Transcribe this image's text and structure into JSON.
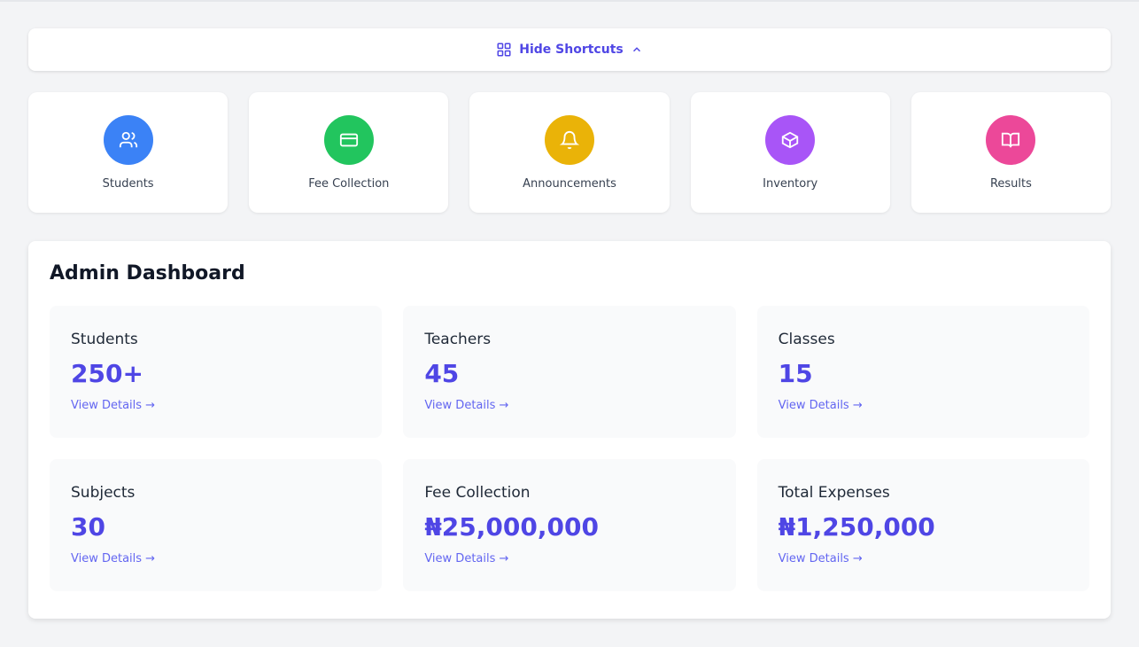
{
  "toggle": {
    "label": "Hide Shortcuts",
    "icon": "grid-icon",
    "chevron": "chevron-up-icon"
  },
  "shortcuts": [
    {
      "label": "Students",
      "icon": "users-icon",
      "color": "#3b82f6"
    },
    {
      "label": "Fee Collection",
      "icon": "credit-card-icon",
      "color": "#22c55e"
    },
    {
      "label": "Announcements",
      "icon": "bell-icon",
      "color": "#eab308"
    },
    {
      "label": "Inventory",
      "icon": "box-icon",
      "color": "#a855f7"
    },
    {
      "label": "Results",
      "icon": "book-open-icon",
      "color": "#ec4899"
    }
  ],
  "dashboard": {
    "title": "Admin Dashboard",
    "link_label": "View Details →",
    "cards": [
      {
        "title": "Students",
        "value": "250+"
      },
      {
        "title": "Teachers",
        "value": "45"
      },
      {
        "title": "Classes",
        "value": "15"
      },
      {
        "title": "Subjects",
        "value": "30"
      },
      {
        "title": "Fee Collection",
        "value": "₦25,000,000"
      },
      {
        "title": "Total Expenses",
        "value": "₦1,250,000"
      }
    ]
  }
}
